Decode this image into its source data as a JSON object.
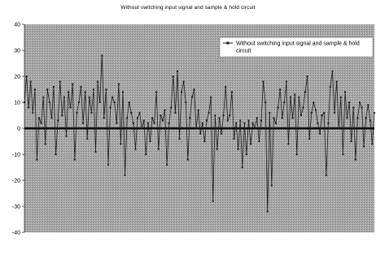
{
  "chart_data": {
    "type": "line",
    "title": "Without switching input signal and sample & hold circuit",
    "xlabel": "",
    "ylabel": "",
    "ylim": [
      -40,
      40
    ],
    "y_ticks": [
      40,
      30,
      20,
      10,
      0,
      -10,
      -20,
      -30,
      -40
    ],
    "grid": false,
    "legend_position": "top-right",
    "colors": {
      "line": "#1a1a1a",
      "background": "#a7a7a7",
      "zero_line": "#000000"
    },
    "series": [
      {
        "name": "Without switching input signal and sample & hold circuit",
        "values": [
          10,
          20,
          8,
          18,
          6,
          15,
          -12,
          4,
          2,
          12,
          -6,
          15,
          10,
          4,
          16,
          -10,
          3,
          18,
          5,
          12,
          -3,
          14,
          8,
          17,
          -12,
          6,
          10,
          16,
          2,
          14,
          -4,
          12,
          6,
          15,
          -9,
          18,
          10,
          28,
          4,
          15,
          -14,
          8,
          12,
          10,
          2,
          17,
          -6,
          14,
          -18,
          4,
          10,
          6,
          2,
          -8,
          4,
          6,
          0,
          3,
          -10,
          2,
          -5,
          4,
          2,
          14,
          -8,
          5,
          3,
          7,
          -14,
          2,
          8,
          20,
          6,
          22,
          -4,
          14,
          18,
          10,
          -12,
          4,
          12,
          15,
          0,
          7,
          -2,
          2,
          -5,
          3,
          6,
          12,
          -28,
          5,
          -8,
          4,
          -2,
          5,
          16,
          3,
          5,
          14,
          -4,
          2,
          -8,
          3,
          -15,
          2,
          -10,
          3,
          -6,
          2,
          0,
          4,
          -5,
          3,
          18,
          10,
          -32,
          6,
          -22,
          4,
          2,
          8,
          15,
          4,
          10,
          18,
          -6,
          12,
          4,
          13,
          -10,
          12,
          5,
          8,
          14,
          20,
          -4,
          6,
          10,
          7,
          2,
          -2,
          5,
          6,
          -18,
          2,
          16,
          22,
          6,
          18,
          0,
          12,
          -10,
          14,
          4,
          10,
          -5,
          8,
          -12,
          4,
          10,
          8,
          -7,
          4,
          9,
          3,
          -6,
          6
        ]
      }
    ]
  }
}
